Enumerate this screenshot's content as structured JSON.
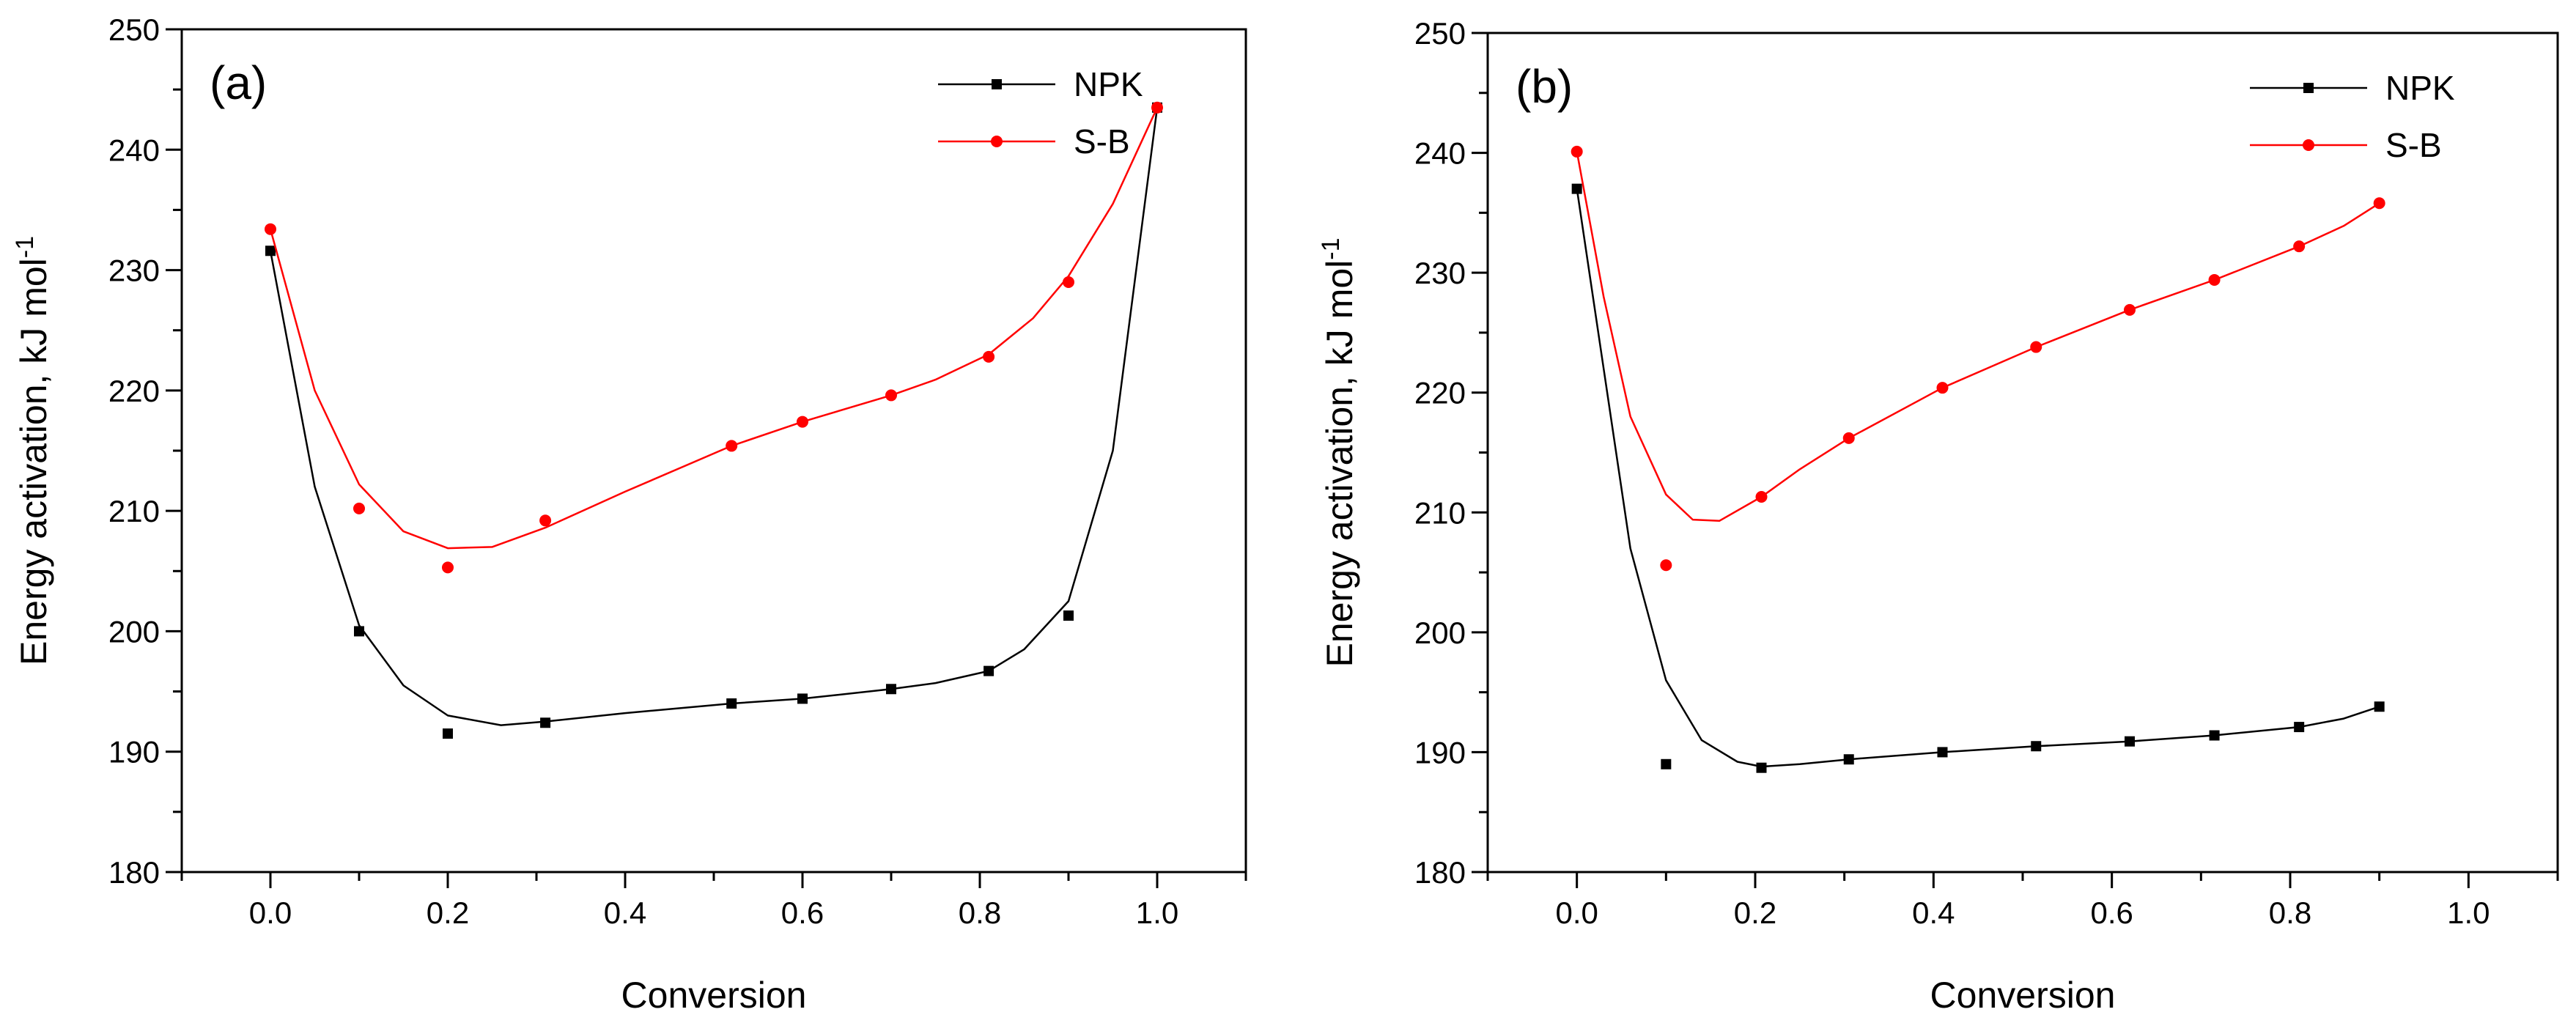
{
  "chart_data": [
    {
      "type": "line",
      "panel_label": "(a)",
      "xlabel": "Conversion",
      "ylabel": "Energy activation, kJ mol",
      "ylabel_sup": "-1",
      "xlim": [
        -0.1,
        1.1
      ],
      "ylim": [
        180,
        250
      ],
      "xticks": [
        "0.0",
        "0.2",
        "0.4",
        "0.6",
        "0.8",
        "1.0"
      ],
      "yticks": [
        "180",
        "190",
        "200",
        "210",
        "220",
        "230",
        "240",
        "250"
      ],
      "legend_position": "top-right",
      "series": [
        {
          "name": "NPK",
          "color": "#000000",
          "marker": "square",
          "points": [
            [
              0.0,
              231.6
            ],
            [
              0.1,
              200.0
            ],
            [
              0.2,
              191.5
            ],
            [
              0.31,
              192.4
            ],
            [
              0.52,
              194.0
            ],
            [
              0.6,
              194.4
            ],
            [
              0.7,
              195.2
            ],
            [
              0.81,
              196.7
            ],
            [
              0.9,
              201.3
            ],
            [
              1.0,
              243.5
            ]
          ],
          "curve": [
            [
              0.0,
              231.6
            ],
            [
              0.05,
              212.0
            ],
            [
              0.1,
              200.5
            ],
            [
              0.15,
              195.5
            ],
            [
              0.2,
              193.0
            ],
            [
              0.26,
              192.2
            ],
            [
              0.31,
              192.5
            ],
            [
              0.4,
              193.2
            ],
            [
              0.52,
              194.0
            ],
            [
              0.6,
              194.4
            ],
            [
              0.7,
              195.2
            ],
            [
              0.75,
              195.7
            ],
            [
              0.81,
              196.7
            ],
            [
              0.85,
              198.5
            ],
            [
              0.9,
              202.5
            ],
            [
              0.95,
              215.0
            ],
            [
              1.0,
              243.5
            ]
          ]
        },
        {
          "name": "S-B",
          "color": "#ff0000",
          "marker": "circle",
          "points": [
            [
              0.0,
              233.4
            ],
            [
              0.1,
              210.2
            ],
            [
              0.2,
              205.3
            ],
            [
              0.31,
              209.2
            ],
            [
              0.52,
              215.4
            ],
            [
              0.6,
              217.4
            ],
            [
              0.7,
              219.6
            ],
            [
              0.81,
              222.8
            ],
            [
              0.9,
              229.0
            ],
            [
              1.0,
              243.5
            ]
          ],
          "curve": [
            [
              0.0,
              233.4
            ],
            [
              0.05,
              220.0
            ],
            [
              0.1,
              212.2
            ],
            [
              0.15,
              208.3
            ],
            [
              0.2,
              206.9
            ],
            [
              0.25,
              207.0
            ],
            [
              0.31,
              208.6
            ],
            [
              0.4,
              211.6
            ],
            [
              0.52,
              215.4
            ],
            [
              0.6,
              217.4
            ],
            [
              0.7,
              219.6
            ],
            [
              0.75,
              220.9
            ],
            [
              0.81,
              223.0
            ],
            [
              0.86,
              226.0
            ],
            [
              0.9,
              229.5
            ],
            [
              0.95,
              235.5
            ],
            [
              1.0,
              243.5
            ]
          ]
        }
      ]
    },
    {
      "type": "line",
      "panel_label": "(b)",
      "xlabel": "Conversion",
      "ylabel": "Energy activation, kJ mol",
      "ylabel_sup": "-1",
      "xlim": [
        -0.1,
        1.1
      ],
      "ylim": [
        180,
        250
      ],
      "xticks": [
        "0.0",
        "0.2",
        "0.4",
        "0.6",
        "0.8",
        "1.0"
      ],
      "yticks": [
        "180",
        "190",
        "200",
        "210",
        "220",
        "230",
        "240",
        "250"
      ],
      "legend_position": "top-right",
      "series": [
        {
          "name": "NPK",
          "color": "#000000",
          "marker": "square",
          "points": [
            [
              0.0,
              237.0
            ],
            [
              0.1,
              189.0
            ],
            [
              0.207,
              188.7
            ],
            [
              0.305,
              189.4
            ],
            [
              0.41,
              190.0
            ],
            [
              0.515,
              190.5
            ],
            [
              0.62,
              190.9
            ],
            [
              0.715,
              191.4
            ],
            [
              0.81,
              192.1
            ],
            [
              0.9,
              193.8
            ]
          ],
          "curve": [
            [
              0.0,
              237.0
            ],
            [
              0.03,
              222.0
            ],
            [
              0.06,
              207.0
            ],
            [
              0.1,
              196.0
            ],
            [
              0.14,
              191.0
            ],
            [
              0.18,
              189.2
            ],
            [
              0.207,
              188.8
            ],
            [
              0.25,
              189.0
            ],
            [
              0.305,
              189.4
            ],
            [
              0.41,
              190.0
            ],
            [
              0.515,
              190.5
            ],
            [
              0.62,
              190.9
            ],
            [
              0.715,
              191.4
            ],
            [
              0.81,
              192.1
            ],
            [
              0.86,
              192.8
            ],
            [
              0.9,
              193.8
            ]
          ]
        },
        {
          "name": "S-B",
          "color": "#ff0000",
          "marker": "circle",
          "points": [
            [
              0.0,
              240.1
            ],
            [
              0.1,
              205.6
            ],
            [
              0.207,
              211.3
            ],
            [
              0.305,
              216.2
            ],
            [
              0.41,
              220.4
            ],
            [
              0.515,
              223.8
            ],
            [
              0.62,
              226.9
            ],
            [
              0.715,
              229.4
            ],
            [
              0.81,
              232.2
            ],
            [
              0.9,
              235.8
            ]
          ],
          "curve": [
            [
              0.0,
              240.1
            ],
            [
              0.03,
              228.0
            ],
            [
              0.06,
              218.0
            ],
            [
              0.1,
              211.5
            ],
            [
              0.13,
              209.4
            ],
            [
              0.16,
              209.3
            ],
            [
              0.207,
              211.3
            ],
            [
              0.25,
              213.6
            ],
            [
              0.305,
              216.2
            ],
            [
              0.41,
              220.4
            ],
            [
              0.515,
              223.8
            ],
            [
              0.62,
              226.9
            ],
            [
              0.715,
              229.4
            ],
            [
              0.81,
              232.2
            ],
            [
              0.86,
              233.9
            ],
            [
              0.9,
              235.8
            ]
          ]
        }
      ]
    }
  ]
}
